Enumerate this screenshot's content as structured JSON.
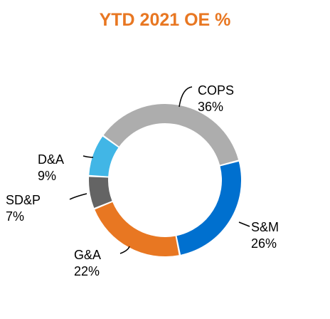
{
  "chart_data": {
    "type": "pie",
    "title": "YTD 2021 OE %",
    "colors": {
      "title": "#E87722"
    },
    "slices": [
      {
        "label": "COPS",
        "value": 36,
        "display": "36%",
        "color": "#ADADAD"
      },
      {
        "label": "S&M",
        "value": 26,
        "display": "26%",
        "color": "#0070CF"
      },
      {
        "label": "G&A",
        "value": 22,
        "display": "22%",
        "color": "#E87722"
      },
      {
        "label": "SD&P",
        "value": 7,
        "display": "7%",
        "color": "#646464"
      },
      {
        "label": "D&A",
        "value": 9,
        "display": "9%",
        "color": "#41B6E6"
      }
    ]
  }
}
